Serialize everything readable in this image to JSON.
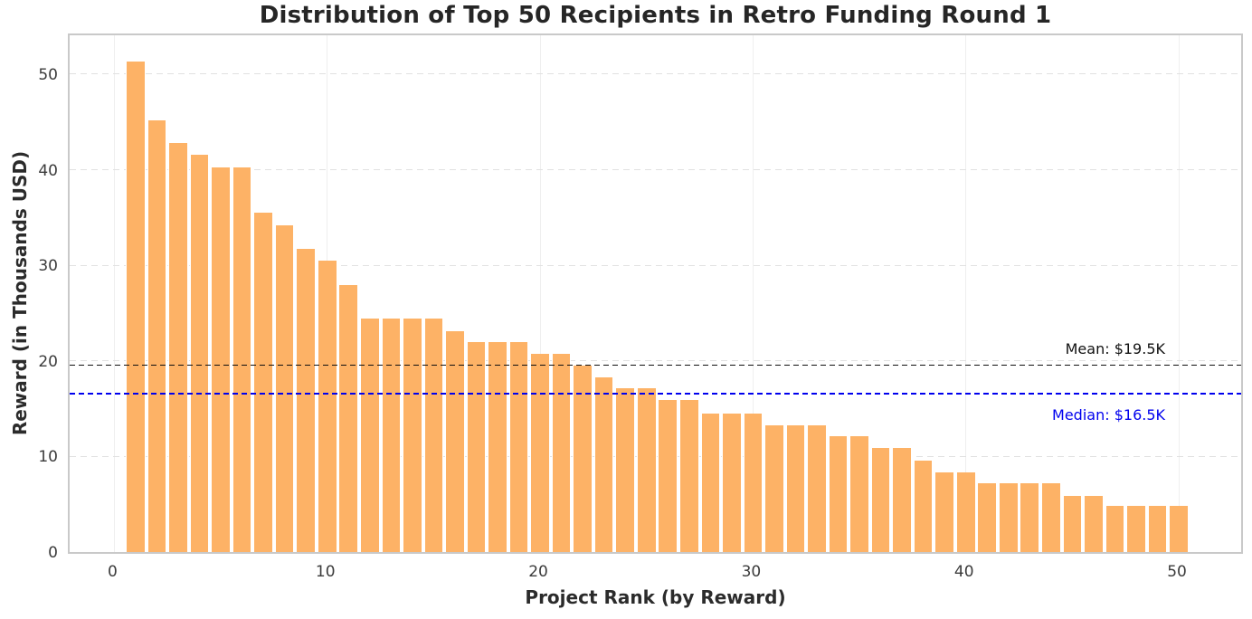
{
  "chart_data": {
    "type": "bar",
    "title": "Distribution of Top 50 Recipients in Retro Funding Round 1",
    "xlabel": "Project Rank (by Reward)",
    "ylabel": "Reward (in Thousands USD)",
    "units": "Thousands USD",
    "categories": [
      1,
      2,
      3,
      4,
      5,
      6,
      7,
      8,
      9,
      10,
      11,
      12,
      13,
      14,
      15,
      16,
      17,
      18,
      19,
      20,
      21,
      22,
      23,
      24,
      25,
      26,
      27,
      28,
      29,
      30,
      31,
      32,
      33,
      34,
      35,
      36,
      37,
      38,
      39,
      40,
      41,
      42,
      43,
      44,
      45,
      46,
      47,
      48,
      49,
      50
    ],
    "values": [
      51.4,
      45.2,
      42.8,
      41.6,
      40.3,
      40.3,
      35.5,
      34.2,
      31.8,
      30.5,
      28.0,
      24.5,
      24.5,
      24.5,
      24.5,
      23.1,
      22.0,
      22.0,
      22.0,
      20.8,
      20.8,
      19.5,
      18.3,
      17.2,
      17.2,
      15.9,
      15.9,
      14.5,
      14.5,
      14.5,
      13.3,
      13.3,
      13.3,
      12.1,
      12.1,
      10.9,
      10.9,
      9.6,
      8.3,
      8.3,
      7.2,
      7.2,
      7.2,
      7.2,
      5.9,
      5.9,
      4.8,
      4.8,
      4.8,
      4.8
    ],
    "xticks": [
      0,
      10,
      20,
      30,
      40,
      50
    ],
    "yticks": [
      0,
      10,
      20,
      30,
      40,
      50
    ],
    "xlim": [
      -2.1,
      53.1
    ],
    "ylim": [
      0,
      54.5
    ],
    "bar_width": 0.92,
    "grid": "on",
    "legend": "none",
    "annotations": {
      "mean": {
        "value": 19.5,
        "label": "Mean: $19.5K"
      },
      "median": {
        "value": 16.5,
        "label": "Median: $16.5K"
      }
    },
    "colors": {
      "bar_fill": "#FDB266",
      "bar_edge": "#ffffff",
      "mean_line": "#111111",
      "mean_text": "#111111",
      "median_line": "#0000EE",
      "median_text": "#0000EE",
      "grid_horizontal": "#e1e1e1",
      "grid_vertical": "#efefef",
      "spine": "#c9c9c9",
      "tick_label": "#3b3b3b",
      "title_text": "#262626",
      "axis_label_text": "#2b2b2b"
    }
  }
}
